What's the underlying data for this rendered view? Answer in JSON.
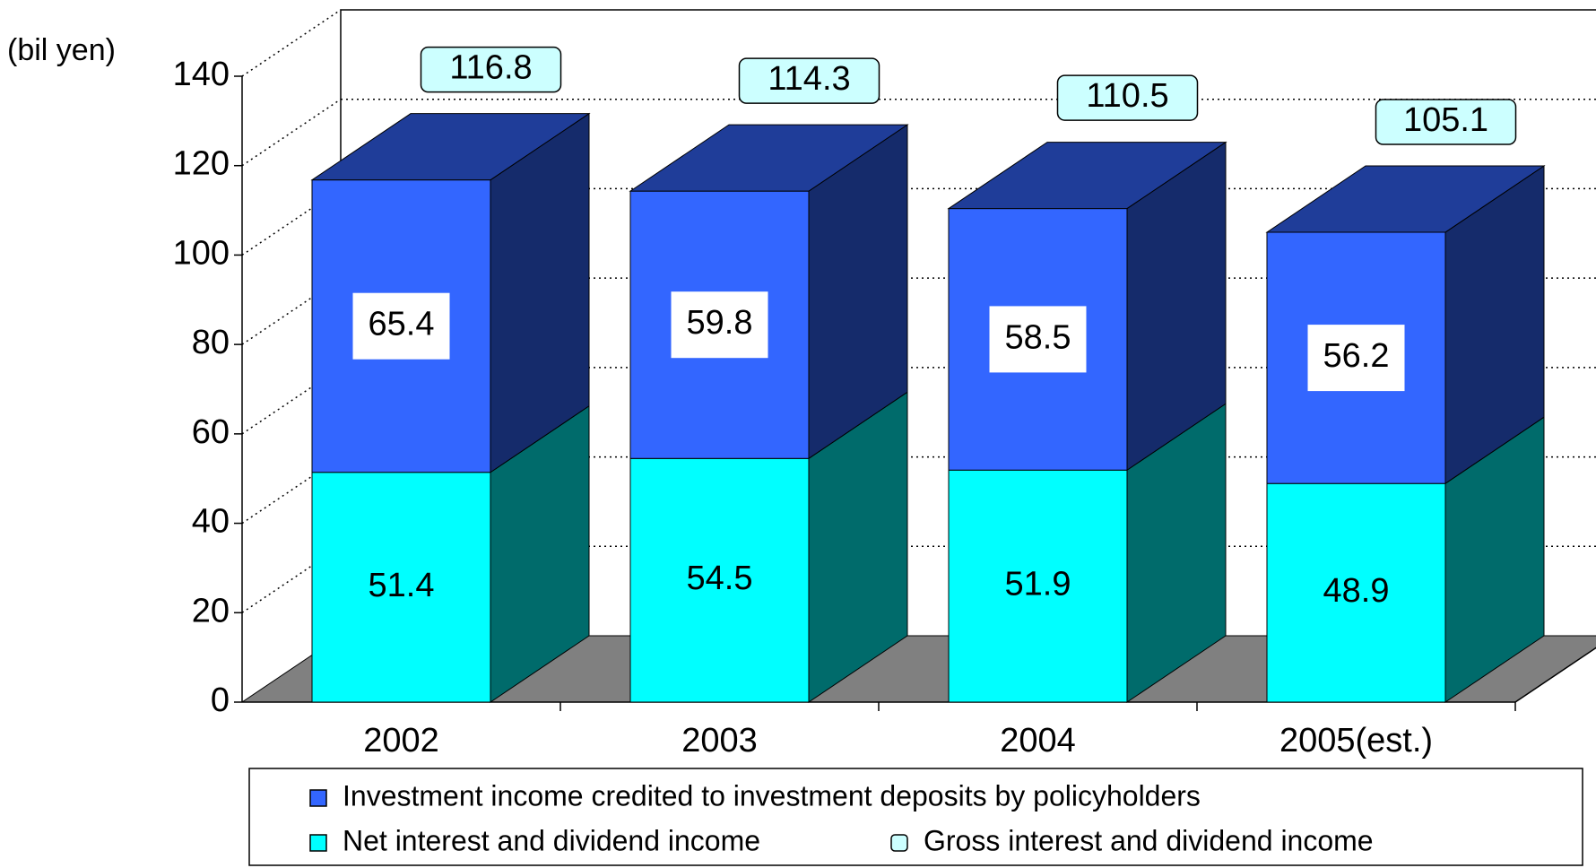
{
  "chart_data": {
    "type": "bar3d",
    "y_label": "(bil yen)",
    "categories": [
      "2002",
      "2003",
      "2004",
      "2005(est.)"
    ],
    "series": [
      {
        "name": "Net interest and dividend income",
        "color": "#00ffff",
        "values": [
          51.4,
          54.5,
          51.9,
          48.9
        ]
      },
      {
        "name": "Investment income credited to investment deposits by policyholders",
        "color": "#3366ff",
        "values": [
          65.4,
          59.8,
          58.5,
          56.2
        ]
      },
      {
        "name": "Gross interest and dividend income",
        "color": "#ccffff",
        "values": [
          116.8,
          114.3,
          110.5,
          105.1
        ]
      }
    ],
    "ylim": [
      0,
      140
    ],
    "yticks": [
      0,
      20,
      40,
      60,
      80,
      100,
      120,
      140
    ],
    "grid": true
  }
}
